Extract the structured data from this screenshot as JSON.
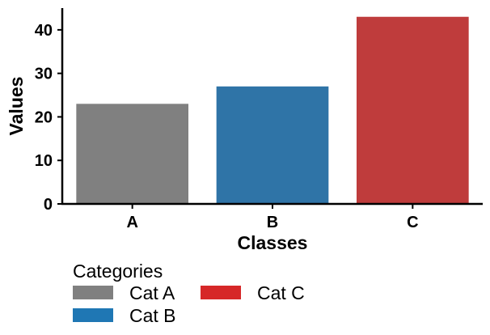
{
  "chart_data": {
    "type": "bar",
    "categories": [
      "A",
      "B",
      "C"
    ],
    "values": [
      23,
      27,
      43
    ],
    "colors": [
      "#808080",
      "#2f74a7",
      "#bf3c3c"
    ],
    "title": "",
    "xlabel": "Classes",
    "ylabel": "Values",
    "ylim": [
      0,
      45
    ],
    "yticks": [
      0,
      10,
      20,
      30,
      40
    ],
    "grid": false,
    "legend": {
      "title": "Categories",
      "placement": "bottom-left",
      "entries": [
        {
          "label": "Cat A",
          "color": "#808080"
        },
        {
          "label": "Cat B",
          "color": "#1f77b4"
        },
        {
          "label": "Cat C",
          "color": "#d62728"
        }
      ]
    }
  }
}
